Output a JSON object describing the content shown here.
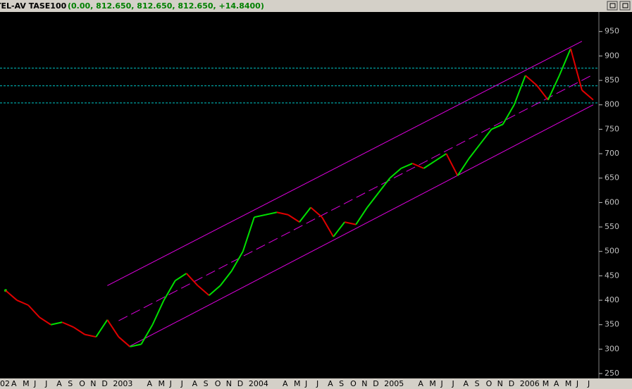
{
  "chart_data": {
    "type": "line",
    "title": "TEL-AV TASE100",
    "subtitle": "(0.00, 812.650, 812.650, 812.650, +14.8400)",
    "categories": [
      "02",
      "A",
      "M",
      "J",
      "J",
      "A",
      "S",
      "O",
      "N",
      "D",
      "2003",
      null,
      null,
      "A",
      "M",
      "J",
      "J",
      "A",
      "S",
      "O",
      "N",
      "D",
      "2004",
      null,
      null,
      "A",
      "M",
      "J",
      "J",
      "A",
      "S",
      "O",
      "N",
      "D",
      "2005",
      null,
      null,
      "A",
      "M",
      "J",
      "J",
      "A",
      "S",
      "O",
      "N",
      "D",
      "2006",
      null,
      "M",
      "A",
      "M",
      "J",
      "J"
    ],
    "values": [
      420,
      400,
      390,
      365,
      350,
      355,
      345,
      330,
      325,
      360,
      325,
      305,
      310,
      350,
      400,
      440,
      455,
      430,
      410,
      430,
      460,
      500,
      570,
      575,
      580,
      575,
      560,
      590,
      570,
      530,
      560,
      555,
      590,
      620,
      650,
      670,
      680,
      670,
      685,
      700,
      655,
      690,
      720,
      750,
      760,
      800,
      860,
      840,
      810,
      860,
      915,
      830,
      810
    ],
    "up_color": "#00e000",
    "down_color": "#e00000",
    "ylim": [
      240,
      990
    ],
    "yticks": [
      250,
      300,
      350,
      400,
      450,
      500,
      550,
      600,
      650,
      700,
      750,
      800,
      850,
      900,
      950
    ],
    "hlines": [
      875,
      839,
      804
    ],
    "hline_color": "#00c8c8",
    "channel_color": "#e000e0",
    "trendlines": [
      {
        "from": 9,
        "to": 51,
        "values": [
          430,
          930
        ]
      },
      {
        "from": 10,
        "to": 52,
        "values": [
          358,
          862
        ],
        "dashed": true
      },
      {
        "from": 11,
        "to": 52,
        "values": [
          306,
          800
        ]
      }
    ]
  }
}
